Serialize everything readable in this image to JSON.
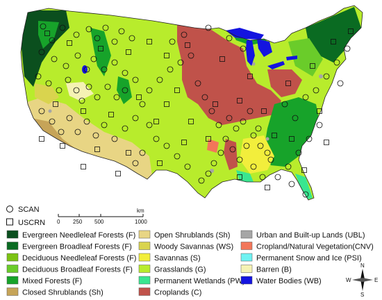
{
  "stations": {
    "scan_label": "SCAN",
    "uscrn_label": "USCRN",
    "scan_points": [
      [
        62,
        38
      ],
      [
        75,
        58
      ],
      [
        90,
        40
      ],
      [
        110,
        50
      ],
      [
        128,
        42
      ],
      [
        140,
        55
      ],
      [
        152,
        40
      ],
      [
        165,
        60
      ],
      [
        175,
        45
      ],
      [
        190,
        55
      ],
      [
        60,
        75
      ],
      [
        78,
        85
      ],
      [
        95,
        95
      ],
      [
        112,
        80
      ],
      [
        125,
        100
      ],
      [
        135,
        85
      ],
      [
        150,
        100
      ],
      [
        165,
        90
      ],
      [
        180,
        105
      ],
      [
        55,
        110
      ],
      [
        70,
        120
      ],
      [
        85,
        130
      ],
      [
        98,
        115
      ],
      [
        110,
        130
      ],
      [
        118,
        145
      ],
      [
        128,
        125
      ],
      [
        140,
        140
      ],
      [
        155,
        125
      ],
      [
        168,
        140
      ],
      [
        180,
        130
      ],
      [
        195,
        115
      ],
      [
        60,
        160
      ],
      [
        75,
        175
      ],
      [
        88,
        190
      ],
      [
        100,
        170
      ],
      [
        112,
        190
      ],
      [
        125,
        175
      ],
      [
        138,
        195
      ],
      [
        150,
        180
      ],
      [
        165,
        200
      ],
      [
        180,
        185
      ],
      [
        195,
        170
      ],
      [
        205,
        150
      ],
      [
        215,
        130
      ],
      [
        230,
        115
      ],
      [
        245,
        100
      ],
      [
        260,
        90
      ],
      [
        275,
        80
      ],
      [
        285,
        120
      ],
      [
        295,
        140
      ],
      [
        305,
        160
      ],
      [
        315,
        180
      ],
      [
        325,
        200
      ],
      [
        335,
        215
      ],
      [
        345,
        230
      ],
      [
        355,
        210
      ],
      [
        365,
        195
      ],
      [
        375,
        210
      ],
      [
        385,
        220
      ],
      [
        340,
        185
      ],
      [
        350,
        175
      ],
      [
        360,
        160
      ],
      [
        330,
        170
      ],
      [
        318,
        220
      ],
      [
        308,
        235
      ],
      [
        300,
        250
      ],
      [
        290,
        260
      ],
      [
        270,
        240
      ],
      [
        255,
        225
      ],
      [
        240,
        210
      ],
      [
        225,
        200
      ],
      [
        215,
        180
      ],
      [
        205,
        220
      ],
      [
        195,
        235
      ],
      [
        410,
        150
      ],
      [
        425,
        170
      ],
      [
        440,
        140
      ],
      [
        455,
        130
      ],
      [
        470,
        110
      ],
      [
        485,
        90
      ],
      [
        500,
        70
      ],
      [
        490,
        120
      ],
      [
        460,
        180
      ],
      [
        445,
        200
      ],
      [
        430,
        220
      ],
      [
        415,
        240
      ],
      [
        400,
        255
      ],
      [
        420,
        265
      ],
      [
        440,
        280
      ],
      [
        365,
        240
      ],
      [
        378,
        255
      ],
      [
        390,
        230
      ],
      [
        372,
        185
      ],
      [
        248,
        60
      ],
      [
        265,
        50
      ],
      [
        300,
        40
      ],
      [
        330,
        55
      ],
      [
        350,
        70
      ]
    ],
    "uscrn_points": [
      [
        68,
        48
      ],
      [
        100,
        62
      ],
      [
        145,
        70
      ],
      [
        185,
        75
      ],
      [
        215,
        60
      ],
      [
        240,
        80
      ],
      [
        270,
        65
      ],
      [
        320,
        85
      ],
      [
        360,
        110
      ],
      [
        80,
        150
      ],
      [
        120,
        160
      ],
      [
        160,
        165
      ],
      [
        200,
        140
      ],
      [
        240,
        150
      ],
      [
        275,
        175
      ],
      [
        310,
        150
      ],
      [
        345,
        145
      ],
      [
        380,
        160
      ],
      [
        415,
        120
      ],
      [
        450,
        95
      ],
      [
        480,
        60
      ],
      [
        505,
        45
      ],
      [
        90,
        210
      ],
      [
        140,
        215
      ],
      [
        185,
        220
      ],
      [
        230,
        235
      ],
      [
        265,
        205
      ],
      [
        300,
        200
      ],
      [
        345,
        255
      ],
      [
        385,
        270
      ],
      [
        420,
        200
      ],
      [
        460,
        160
      ],
      [
        255,
        130
      ],
      [
        225,
        175
      ],
      [
        170,
        250
      ],
      [
        120,
        240
      ],
      [
        60,
        200
      ],
      [
        395,
        195
      ],
      [
        438,
        245
      ],
      [
        470,
        205
      ]
    ]
  },
  "scale_bar": {
    "unit": "km",
    "ticks": [
      "0",
      "250",
      "500",
      "1000"
    ]
  },
  "compass": {
    "n": "N",
    "e": "E",
    "s": "S",
    "w": "W"
  },
  "legend": {
    "col1": [
      {
        "label": "Evergreen Needleleaf Forests (F)",
        "color": "#0b4f1e"
      },
      {
        "label": "Evergreen Broadleaf Forests (F)",
        "color": "#0a6b22"
      },
      {
        "label": "Deciduous Needleleaf Forests (F)",
        "color": "#7cc314"
      },
      {
        "label": "Deciduous Broadleaf Forests (F)",
        "color": "#6acc2a"
      },
      {
        "label": "Mixed Forests (F)",
        "color": "#17a32a"
      },
      {
        "label": "Closed Shrublands (Sh)",
        "color": "#c6a458"
      }
    ],
    "col2": [
      {
        "label": "Open Shrublands (Sh)",
        "color": "#e8d584"
      },
      {
        "label": "Woody Savannas (WS)",
        "color": "#d9d44e"
      },
      {
        "label": "Savannas (S)",
        "color": "#f2ee3c"
      },
      {
        "label": "Grasslands (G)",
        "color": "#b8ec2c"
      },
      {
        "label": "Permanent Wetlands (PW)",
        "color": "#39e690"
      },
      {
        "label": "Croplands (C)",
        "color": "#c0524a"
      }
    ],
    "col3": [
      {
        "label": "Urban and Built-up Lands (UBL)",
        "color": "#a6a6a6"
      },
      {
        "label": "Cropland/Natural Vegetation(CNV)",
        "color": "#f2765a"
      },
      {
        "label": "Permanent Snow and Ice (PSI)",
        "color": "#6ff2f2"
      },
      {
        "label": "Barren (B)",
        "color": "#f5f2b4"
      },
      {
        "label": "Water Bodies (WB)",
        "color": "#1414e0"
      }
    ]
  }
}
